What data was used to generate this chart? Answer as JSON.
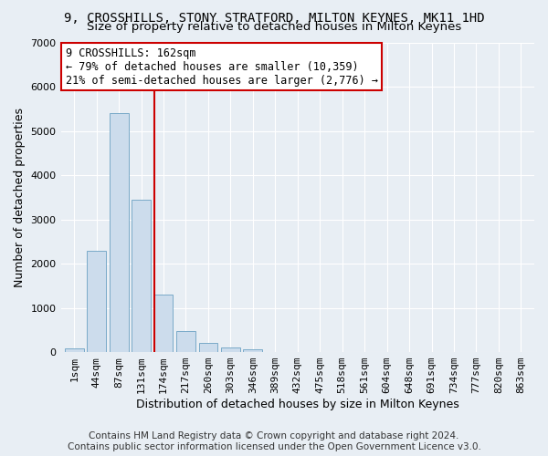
{
  "title": "9, CROSSHILLS, STONY STRATFORD, MILTON KEYNES, MK11 1HD",
  "subtitle": "Size of property relative to detached houses in Milton Keynes",
  "xlabel": "Distribution of detached houses by size in Milton Keynes",
  "ylabel": "Number of detached properties",
  "footer": "Contains HM Land Registry data © Crown copyright and database right 2024.\nContains public sector information licensed under the Open Government Licence v3.0.",
  "categories": [
    "1sqm",
    "44sqm",
    "87sqm",
    "131sqm",
    "174sqm",
    "217sqm",
    "260sqm",
    "303sqm",
    "346sqm",
    "389sqm",
    "432sqm",
    "475sqm",
    "518sqm",
    "561sqm",
    "604sqm",
    "648sqm",
    "691sqm",
    "734sqm",
    "777sqm",
    "820sqm",
    "863sqm"
  ],
  "values": [
    75,
    2300,
    5400,
    3450,
    1300,
    480,
    200,
    100,
    60,
    0,
    0,
    0,
    0,
    0,
    0,
    0,
    0,
    0,
    0,
    0,
    0
  ],
  "bar_color": "#ccdcec",
  "bar_edge_color": "#7aaac8",
  "red_line_x": 3.57,
  "annotation_text": "9 CROSSHILLS: 162sqm\n← 79% of detached houses are smaller (10,359)\n21% of semi-detached houses are larger (2,776) →",
  "annotation_box_color": "#ffffff",
  "annotation_border_color": "#cc0000",
  "red_line_color": "#cc0000",
  "ylim": [
    0,
    7000
  ],
  "yticks": [
    0,
    1000,
    2000,
    3000,
    4000,
    5000,
    6000,
    7000
  ],
  "bg_color": "#e8eef4",
  "grid_color": "#ffffff",
  "title_fontsize": 10,
  "subtitle_fontsize": 9.5,
  "axis_label_fontsize": 9,
  "tick_fontsize": 8,
  "footer_fontsize": 7.5,
  "ann_fontsize": 8.5
}
